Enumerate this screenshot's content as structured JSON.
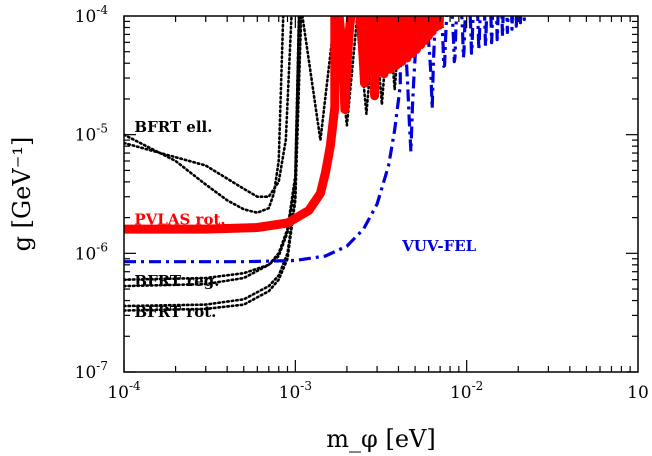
{
  "chart_data": {
    "type": "line",
    "title": "",
    "xlabel": "m_φ [eV]",
    "ylabel": "g [GeV⁻¹]",
    "xscale": "log",
    "yscale": "log",
    "xlim": [
      0.0001,
      0.1
    ],
    "ylim": [
      1e-07,
      0.0001
    ],
    "x_tick_labels": [
      {
        "value": 0.0001,
        "base": "10",
        "exp": "-4"
      },
      {
        "value": 0.001,
        "base": "10",
        "exp": "-3"
      },
      {
        "value": 0.01,
        "base": "10",
        "exp": "-2"
      },
      {
        "value": 0.1,
        "base": "10",
        "exp": ""
      }
    ],
    "y_tick_labels": [
      {
        "value": 1e-07,
        "base": "10",
        "exp": "-7"
      },
      {
        "value": 1e-06,
        "base": "10",
        "exp": "-6"
      },
      {
        "value": 1e-05,
        "base": "10",
        "exp": "-5"
      },
      {
        "value": 0.0001,
        "base": "10",
        "exp": "-4"
      }
    ],
    "grid": false,
    "legend": "none",
    "annotations": [
      {
        "text": "BFRT ell.",
        "color": "#000000",
        "x": 0.000115,
        "y": 1.05e-05
      },
      {
        "text": "PVLAS rot.",
        "color": "#ff0000",
        "x": 0.000115,
        "y": 1.75e-06
      },
      {
        "text": "VUV-FEL",
        "color": "#0000dd",
        "x": 0.0042,
        "y": 1.05e-06
      },
      {
        "text": "BFRT reg.",
        "color": "#000000",
        "x": 0.000115,
        "y": 5.3e-07
      },
      {
        "text": "BFRT rot.",
        "color": "#000000",
        "x": 0.000115,
        "y": 2.9e-07
      }
    ],
    "series": [
      {
        "style": "solid-thick",
        "color": "#ff0000",
        "x": [
          0.0001,
          0.0003,
          0.0006,
          0.0009,
          0.0012,
          0.0014,
          0.0015,
          0.0016,
          0.0017
        ],
        "y": [
          1.6e-06,
          1.6e-06,
          1.65e-06,
          1.8e-06,
          2.3e-06,
          3.2e-06,
          4.8e-06,
          8e-06,
          1.7e-05
        ],
        "oscillation": {
          "x_start": 0.0017,
          "x_end": 0.0075,
          "min_x": [
            0.00195,
            0.00255,
            0.0029,
            0.0033,
            0.0036,
            0.0039,
            0.0042,
            0.0045,
            0.0048,
            0.0051,
            0.0054,
            0.0057,
            0.006,
            0.0063,
            0.0066,
            0.0069
          ],
          "min_y": [
            1.35e-05,
            1.8e-05,
            2e-05,
            2.3e-05,
            2.6e-05,
            2.9e-05,
            3.2e-05,
            3.5e-05,
            3.9e-05,
            4.3e-05,
            4.8e-05,
            5.3e-05,
            5.9e-05,
            6.5e-05,
            7.2e-05,
            8e-05
          ]
        }
      },
      {
        "style": "dashdot",
        "color": "#0000dd",
        "x": [
          0.0001,
          0.0005,
          0.001,
          0.0015,
          0.002,
          0.0025,
          0.003,
          0.0035,
          0.0038,
          0.0041
        ],
        "y": [
          8.5e-07,
          8.5e-07,
          8.7e-07,
          9.5e-07,
          1.15e-06,
          1.6e-06,
          2.6e-06,
          5.5e-06,
          1.1e-05,
          2.6e-05
        ],
        "oscillation": {
          "x_start": 0.0041,
          "x_end": 0.028,
          "min_x": [
            0.0047,
            0.0063,
            0.0074,
            0.0085,
            0.0096,
            0.0107,
            0.0118,
            0.0129,
            0.014,
            0.0151,
            0.0162,
            0.0173,
            0.0184,
            0.0195,
            0.0206,
            0.0217,
            0.0228
          ],
          "min_y": [
            4.3e-06,
            1.5e-05,
            2.4e-05,
            2.8e-05,
            3.2e-05,
            3.6e-05,
            4e-05,
            4.4e-05,
            4.8e-05,
            5.2e-05,
            5.7e-05,
            6.2e-05,
            6.7e-05,
            7.2e-05,
            7.8e-05,
            8.4e-05,
            9e-05
          ]
        }
      },
      {
        "style": "dotted",
        "color": "#000000",
        "x": [
          0.0001,
          0.0002,
          0.0003,
          0.0004,
          0.0005,
          0.0006,
          0.0007,
          0.00075,
          0.0008,
          0.00085
        ],
        "y": [
          1e-05,
          6e-06,
          3.8e-06,
          2.8e-06,
          2.35e-06,
          2.2e-06,
          2.4e-06,
          3.2e-06,
          6e-06,
          0.0001
        ]
      },
      {
        "style": "dotted",
        "color": "#000000",
        "x": [
          0.0001,
          0.0003,
          0.0005,
          0.0006,
          0.0007,
          0.0008,
          0.00088,
          0.00095
        ],
        "y": [
          8.5e-06,
          5.5e-06,
          3.5e-06,
          3e-06,
          3e-06,
          4e-06,
          9e-06,
          0.0001
        ]
      },
      {
        "style": "dotted",
        "color": "#000000",
        "x": [
          0.0001,
          0.0003,
          0.0005,
          0.0007,
          0.0008,
          0.0009,
          0.001,
          0.00105
        ],
        "y": [
          6e-07,
          6.2e-07,
          6.8e-07,
          8e-07,
          9.5e-07,
          1.5e-06,
          4e-06,
          0.0001
        ]
      },
      {
        "style": "dotted",
        "color": "#000000",
        "x": [
          0.0001,
          0.0003,
          0.0005,
          0.0007,
          0.0008,
          0.0009,
          0.001,
          0.00105
        ],
        "y": [
          5.3e-07,
          5.5e-07,
          6.2e-07,
          8e-07,
          1e-06,
          1.6e-06,
          4.5e-06,
          0.0001
        ]
      },
      {
        "style": "dotted",
        "color": "#000000",
        "x": [
          0.0001,
          0.0003,
          0.0005,
          0.0007,
          0.0008,
          0.0009,
          0.001,
          0.00108
        ],
        "y": [
          3.6e-07,
          3.7e-07,
          4.1e-07,
          5.3e-07,
          6.5e-07,
          1e-06,
          3e-06,
          0.0001
        ]
      },
      {
        "style": "dotted",
        "color": "#000000",
        "x": [
          0.0001,
          0.0003,
          0.0005,
          0.0007,
          0.0008,
          0.0009,
          0.001,
          0.00108
        ],
        "y": [
          3.3e-07,
          3.4e-07,
          3.7e-07,
          4.8e-07,
          6e-07,
          9e-07,
          2.8e-06,
          0.0001
        ]
      },
      {
        "style": "dotted",
        "color": "#000000",
        "x": [
          0.0011,
          0.0014,
          0.0017,
          0.002,
          0.0023,
          0.0026,
          0.0029,
          0.0032,
          0.0035,
          0.0038,
          0.0041
        ],
        "y": [
          0.0001,
          9e-06,
          0.0001,
          1.2e-05,
          0.0001,
          1.5e-05,
          0.0001,
          1.8e-05,
          0.0001,
          2.4e-05,
          0.0001
        ]
      }
    ]
  }
}
